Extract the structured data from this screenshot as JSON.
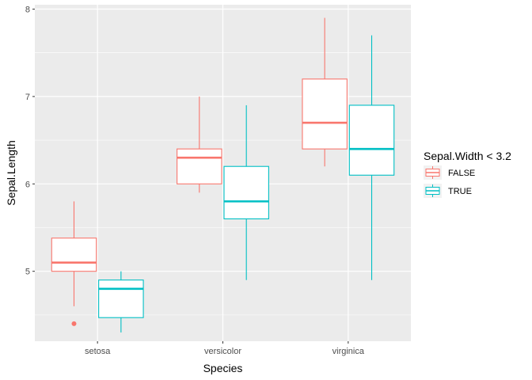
{
  "chart_data": {
    "type": "boxplot",
    "title": "",
    "xlabel": "Species",
    "ylabel": "Sepal.Length",
    "categories": [
      "setosa",
      "versicolor",
      "virginica"
    ],
    "ylim": [
      4.2,
      8.05
    ],
    "yticks": [
      5,
      6,
      7,
      8
    ],
    "grid": true,
    "legend": {
      "title": "Sepal.Width < 3.2",
      "position": "right",
      "entries": [
        {
          "label": "FALSE",
          "color": "#F8766D"
        },
        {
          "label": "TRUE",
          "color": "#00BFC4"
        }
      ]
    },
    "series": [
      {
        "name": "FALSE",
        "color": "#F8766D",
        "boxes": [
          {
            "category": "setosa",
            "min": 4.6,
            "q1": 5.0,
            "median": 5.1,
            "q3": 5.38,
            "max": 5.8,
            "outliers": [
              4.4
            ]
          },
          {
            "category": "versicolor",
            "min": 5.9,
            "q1": 6.0,
            "median": 6.3,
            "q3": 6.4,
            "max": 7.0,
            "outliers": []
          },
          {
            "category": "virginica",
            "min": 6.2,
            "q1": 6.4,
            "median": 6.7,
            "q3": 7.2,
            "max": 7.9,
            "outliers": []
          }
        ]
      },
      {
        "name": "TRUE",
        "color": "#00BFC4",
        "boxes": [
          {
            "category": "setosa",
            "min": 4.3,
            "q1": 4.47,
            "median": 4.8,
            "q3": 4.9,
            "max": 5.0,
            "outliers": []
          },
          {
            "category": "versicolor",
            "min": 4.9,
            "q1": 5.6,
            "median": 5.8,
            "q3": 6.2,
            "max": 6.9,
            "outliers": []
          },
          {
            "category": "virginica",
            "min": 4.9,
            "q1": 6.1,
            "median": 6.4,
            "q3": 6.9,
            "max": 7.7,
            "outliers": []
          }
        ]
      }
    ]
  }
}
